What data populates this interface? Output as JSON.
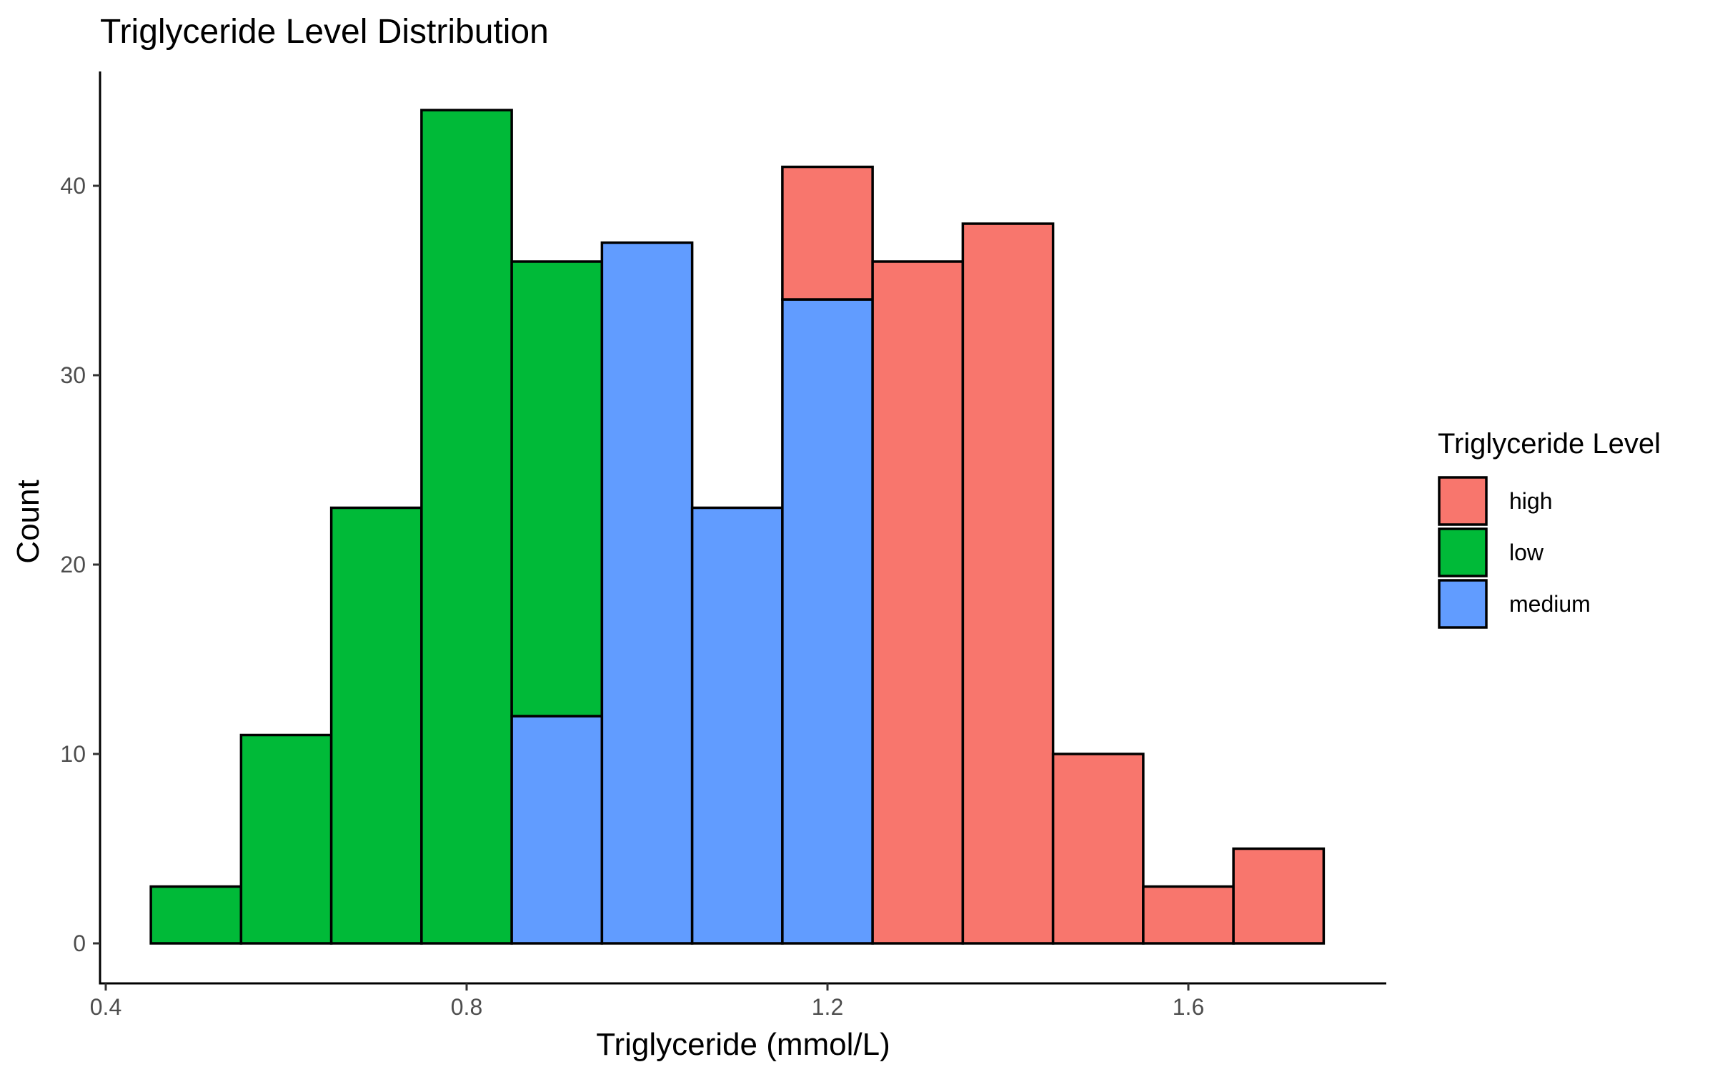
{
  "chart_data": {
    "type": "bar",
    "subtype": "stacked-histogram",
    "title": "Triglyceride Level Distribution",
    "xlabel": "Triglyceride (mmol/L)",
    "ylabel": "Count",
    "xlim": [
      0.4,
      1.8
    ],
    "ylim": [
      0,
      45
    ],
    "x_ticks": [
      0.4,
      0.8,
      1.2,
      1.6
    ],
    "x_tick_labels": [
      "0.4",
      "0.8",
      "1.2",
      "1.6"
    ],
    "y_ticks": [
      0,
      10,
      20,
      30,
      40
    ],
    "y_tick_labels": [
      "0",
      "10",
      "20",
      "30",
      "40"
    ],
    "bin_width": 0.1,
    "bins": [
      0.5,
      0.6,
      0.7,
      0.8,
      0.9,
      1.0,
      1.1,
      1.2,
      1.3,
      1.4,
      1.5,
      1.6,
      1.7
    ],
    "series": [
      {
        "name": "high",
        "color": "#F8766D",
        "values": [
          0,
          0,
          0,
          0,
          0,
          0,
          0,
          7,
          36,
          38,
          10,
          3,
          5
        ]
      },
      {
        "name": "low",
        "color": "#00BA38",
        "values": [
          3,
          11,
          23,
          44,
          24,
          0,
          0,
          0,
          0,
          0,
          0,
          0,
          0
        ]
      },
      {
        "name": "medium",
        "color": "#619CFF",
        "values": [
          0,
          0,
          0,
          0,
          12,
          37,
          23,
          34,
          0,
          0,
          0,
          0,
          0
        ]
      }
    ],
    "stack_order": [
      "medium",
      "low",
      "high"
    ],
    "legend": {
      "title": "Triglyceride Level",
      "position": "right"
    },
    "grid": false,
    "bar_outline_color": "#000000"
  }
}
